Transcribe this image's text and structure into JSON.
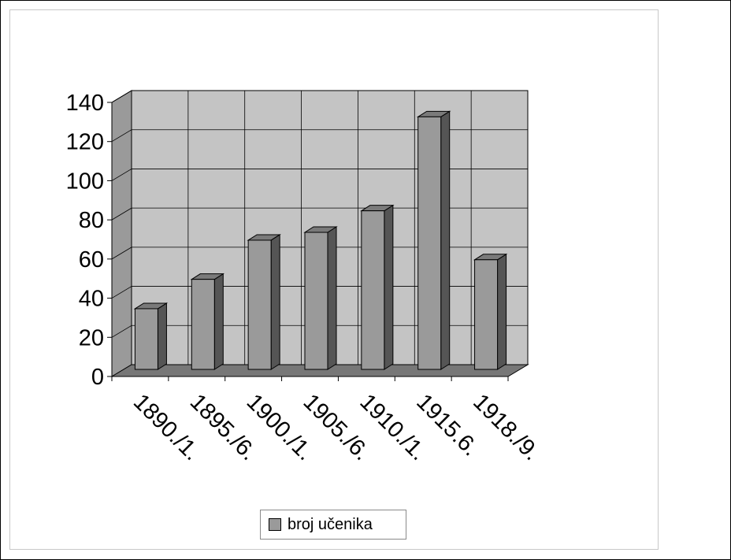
{
  "chart_data": {
    "type": "bar",
    "categories": [
      "1890./1.",
      "1895./6.",
      "1900./1.",
      "1905./6.",
      "1910./1.",
      "1915.6.",
      "1918./9."
    ],
    "series": [
      {
        "name": "broj učenika",
        "values": [
          31,
          46,
          66,
          70,
          81,
          129,
          56
        ]
      }
    ],
    "ylim": [
      0,
      140
    ],
    "yticks": [
      "0",
      "20",
      "40",
      "60",
      "80",
      "100",
      "120",
      "140"
    ],
    "grid": true,
    "legend_position": "bottom",
    "colors": {
      "bar_front": "#9a9a9a",
      "bar_top": "#7a7a7a",
      "bar_side": "#555555",
      "back_wall": "#c4c4c4",
      "side_wall": "#9a9a9a",
      "floor": "#777777"
    }
  }
}
